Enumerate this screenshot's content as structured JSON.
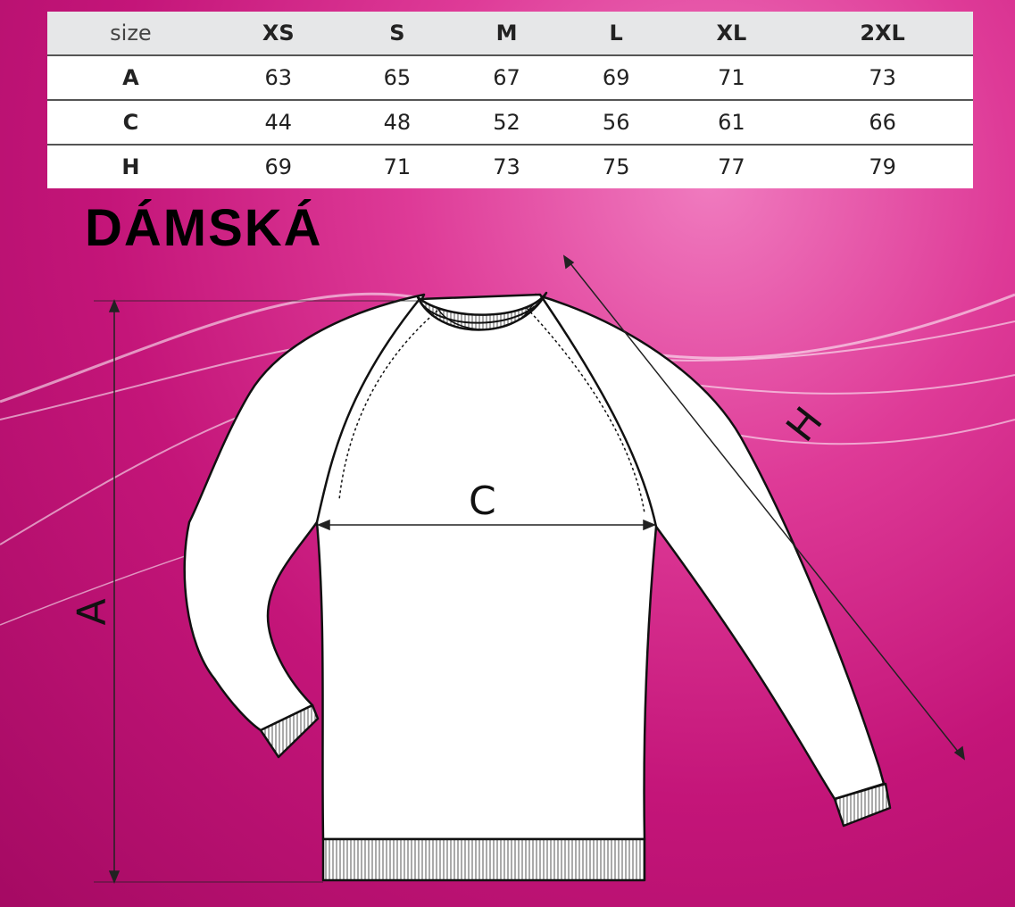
{
  "table": {
    "header": [
      "size",
      "XS",
      "S",
      "M",
      "L",
      "XL",
      "2XL"
    ],
    "rows": [
      {
        "label": "A",
        "values": [
          "63",
          "65",
          "67",
          "69",
          "71",
          "73"
        ]
      },
      {
        "label": "C",
        "values": [
          "44",
          "48",
          "52",
          "56",
          "61",
          "66"
        ]
      },
      {
        "label": "H",
        "values": [
          "69",
          "71",
          "73",
          "75",
          "77",
          "79"
        ]
      }
    ]
  },
  "title": "DÁMSKÁ",
  "diagram": {
    "labels": {
      "a": "A",
      "c": "C",
      "h": "H"
    }
  },
  "colors": {
    "background": "#c41579",
    "header_bg": "#e6e7e8"
  }
}
